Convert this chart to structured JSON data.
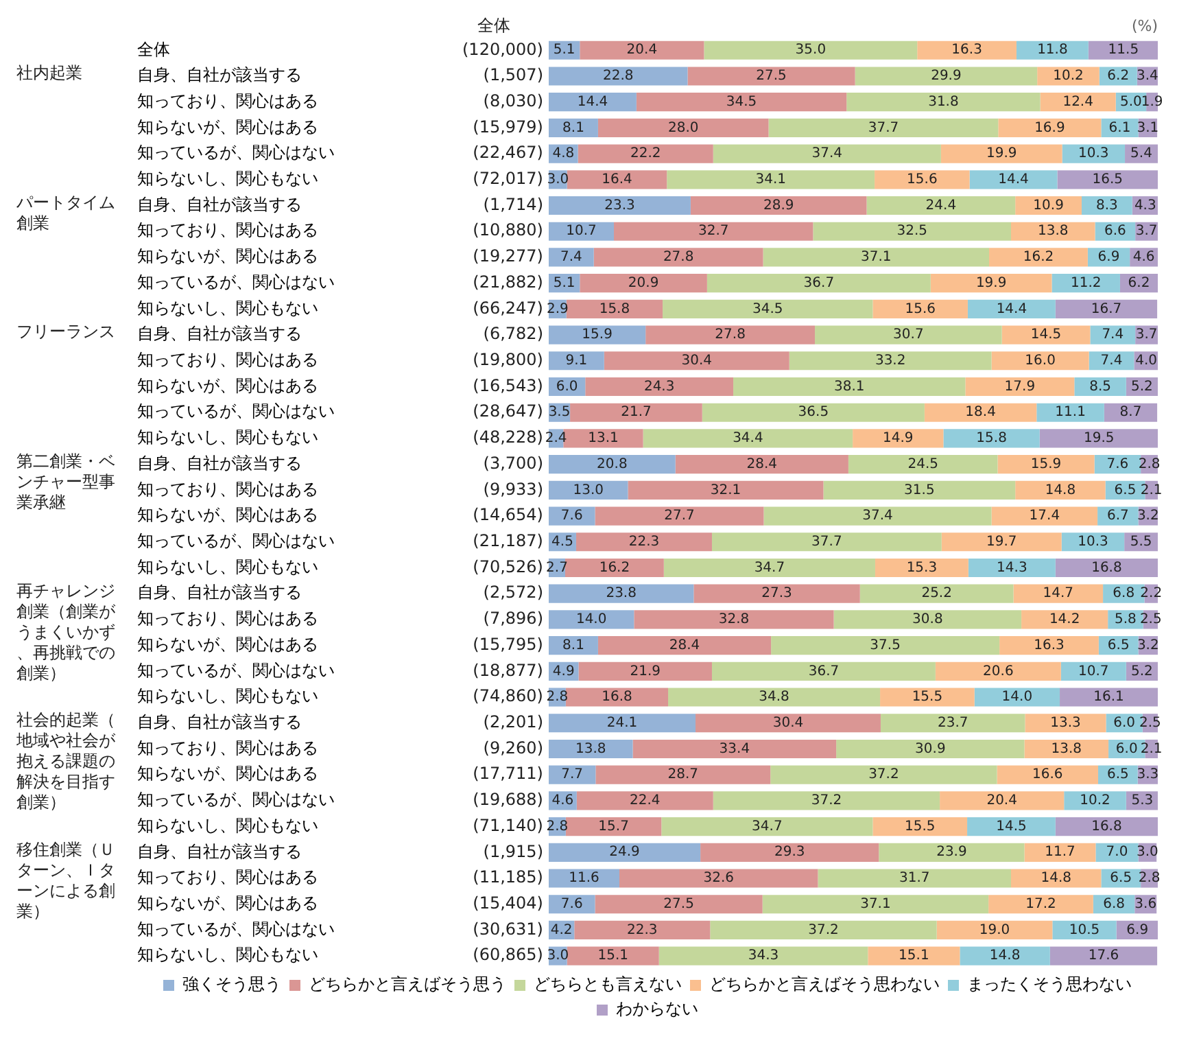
{
  "chart_data": {
    "type": "bar",
    "orientation": "horizontal",
    "stacked": true,
    "xlabel": "(%)",
    "xlim": [
      0,
      100
    ],
    "tick_labels": "y",
    "grid": false,
    "legend": "bottom",
    "categories": [
      "全体",
      "自身、自社が該当する",
      "知っており、関心はある",
      "知らないが、関心はある",
      "知っているが、関心はない",
      "知らないし、関心もない",
      "自身、自社が該当する",
      "知っており、関心はある",
      "知らないが、関心はある",
      "知っているが、関心はない",
      "知らないし、関心もない",
      "自身、自社が該当する",
      "知っており、関心はある",
      "知らないが、関心はある",
      "知っているが、関心はない",
      "知らないし、関心もない",
      "自身、自社が該当する",
      "知っており、関心はある",
      "知らないが、関心はある",
      "知っているが、関心はない",
      "知らないし、関心もない",
      "自身、自社が該当する",
      "知っており、関心はある",
      "知らないが、関心はある",
      "知っているが、関心はない",
      "知らないし、関心もない",
      "自身、自社が該当する",
      "知っており、関心はある",
      "知らないが、関心はある",
      "知っているが、関心はない",
      "知らないし、関心もない",
      "自身、自社が該当する",
      "知っており、関心はある",
      "知らないが、関心はある",
      "知っているが、関心はない",
      "知らないし、関心もない"
    ],
    "annotations": [
      "全体",
      "社内起業",
      "パートタイム創業",
      "フリーランス",
      "第二創業・ベンチャー型事業承継",
      "再チャレンジ創業（創業がうまくいかず、再挑戦での創業）",
      "社会的起業（地域や社会が抱える課題の解決を目指す創業）",
      "移住創業（Ｕターン、Ｉターンによる創業）",
      "(120,000)",
      "(1,507)",
      "(8,030)",
      "(15,979)",
      "(22,467)",
      "(72,017)",
      "(1,714)",
      "(10,880)",
      "(19,277)",
      "(21,882)",
      "(66,247)",
      "(6,782)",
      "(19,800)",
      "(16,543)",
      "(28,647)",
      "(48,228)",
      "(3,700)",
      "(9,933)",
      "(14,654)",
      "(21,187)",
      "(70,526)",
      "(2,572)",
      "(7,896)",
      "(15,795)",
      "(18,877)",
      "(74,860)",
      "(2,201)",
      "(9,260)",
      "(17,711)",
      "(19,688)",
      "(71,140)",
      "(1,915)",
      "(11,185)",
      "(15,404)",
      "(30,631)",
      "(60,865)"
    ],
    "series": [
      {
        "name": "強くそう思う",
        "color": "#95b3d7",
        "values": [
          5.1,
          22.8,
          14.4,
          8.1,
          4.8,
          3.0,
          23.3,
          10.7,
          7.4,
          5.1,
          2.9,
          15.9,
          9.1,
          6.0,
          3.5,
          2.4,
          20.8,
          13.0,
          7.6,
          4.5,
          2.7,
          23.8,
          14.0,
          8.1,
          4.9,
          2.8,
          24.1,
          13.8,
          7.7,
          4.6,
          2.8,
          24.9,
          11.6,
          7.6,
          4.2,
          3.0
        ],
        "value_labels": [
          "5.1",
          "22.8",
          "14.4",
          "8.1",
          "4.8",
          "3.0",
          "23.3",
          "10.7",
          "7.4",
          "5.1",
          "2.9",
          "15.9",
          "9.1",
          "6.0",
          "3.5",
          "2.4",
          "20.8",
          "13.0",
          "7.6",
          "4.5",
          "2.7",
          "23.8",
          "14.0",
          "8.1",
          "4.9",
          "2.8",
          "24.1",
          "13.8",
          "7.7",
          "4.6",
          "2.8",
          "24.9",
          "11.6",
          "7.6",
          "4.2",
          "3.0"
        ]
      },
      {
        "name": "どちらかと言えばそう思う",
        "color": "#da9694",
        "values": [
          20.4,
          27.5,
          34.5,
          28.0,
          22.2,
          16.4,
          28.9,
          32.7,
          27.8,
          20.9,
          15.8,
          27.8,
          30.4,
          24.3,
          21.7,
          13.1,
          28.4,
          32.1,
          27.7,
          22.3,
          16.2,
          27.3,
          32.8,
          28.4,
          21.9,
          16.8,
          30.4,
          33.4,
          28.7,
          22.4,
          15.7,
          29.3,
          32.6,
          27.5,
          22.3,
          15.1
        ],
        "value_labels": [
          "20.4",
          "27.5",
          "34.5",
          "28.0",
          "22.2",
          "16.4",
          "28.9",
          "32.7",
          "27.8",
          "20.9",
          "15.8",
          "27.8",
          "30.4",
          "24.3",
          "21.7",
          "13.1",
          "28.4",
          "32.1",
          "27.7",
          "22.3",
          "16.2",
          "27.3",
          "32.8",
          "28.4",
          "21.9",
          "16.8",
          "30.4",
          "33.4",
          "28.7",
          "22.4",
          "15.7",
          "29.3",
          "32.6",
          "27.5",
          "22.3",
          "15.1"
        ]
      },
      {
        "name": "どちらとも言えない",
        "color": "#c4d79b",
        "values": [
          35.0,
          29.9,
          31.8,
          37.7,
          37.4,
          34.1,
          24.4,
          32.5,
          37.1,
          36.7,
          34.5,
          30.7,
          33.2,
          38.1,
          36.5,
          34.4,
          24.5,
          31.5,
          37.4,
          37.7,
          34.7,
          25.2,
          30.8,
          37.5,
          36.7,
          34.8,
          23.7,
          30.9,
          37.2,
          37.2,
          34.7,
          23.9,
          31.7,
          37.1,
          37.2,
          34.3
        ],
        "value_labels": [
          "35.0",
          "29.9",
          "31.8",
          "37.7",
          "37.4",
          "34.1",
          "24.4",
          "32.5",
          "37.1",
          "36.7",
          "34.5",
          "30.7",
          "33.2",
          "38.1",
          "36.5",
          "34.4",
          "24.5",
          "31.5",
          "37.4",
          "37.7",
          "34.7",
          "25.2",
          "30.8",
          "37.5",
          "36.7",
          "34.8",
          "23.7",
          "30.9",
          "37.2",
          "37.2",
          "34.7",
          "23.9",
          "31.7",
          "37.1",
          "37.2",
          "34.3"
        ]
      },
      {
        "name": "どちらかと言えばそう思わない",
        "color": "#fabf8f",
        "values": [
          16.3,
          10.2,
          12.4,
          16.9,
          19.9,
          15.6,
          10.9,
          13.8,
          16.2,
          19.9,
          15.6,
          14.5,
          16.0,
          17.9,
          18.4,
          14.9,
          15.9,
          14.8,
          17.4,
          19.7,
          15.3,
          14.7,
          14.2,
          16.3,
          20.6,
          15.5,
          13.3,
          13.8,
          16.6,
          20.4,
          15.5,
          11.7,
          14.8,
          17.2,
          19.0,
          15.1
        ],
        "value_labels": [
          "16.3",
          "10.2",
          "12.4",
          "16.9",
          "19.9",
          "15.6",
          "10.9",
          "13.8",
          "16.2",
          "19.9",
          "15.6",
          "14.5",
          "16.0",
          "17.9",
          "18.4",
          "14.9",
          "15.9",
          "14.8",
          "17.4",
          "19.7",
          "15.3",
          "14.7",
          "14.2",
          "16.3",
          "20.6",
          "15.5",
          "13.3",
          "13.8",
          "16.6",
          "20.4",
          "15.5",
          "11.7",
          "14.8",
          "17.2",
          "19.0",
          "15.1"
        ]
      },
      {
        "name": "まったくそう思わない",
        "color": "#92cddc",
        "values": [
          11.8,
          6.2,
          5.0,
          6.1,
          10.3,
          14.4,
          8.3,
          6.6,
          6.9,
          11.2,
          14.4,
          7.4,
          7.4,
          8.5,
          11.1,
          15.8,
          7.6,
          6.5,
          6.7,
          10.3,
          14.3,
          6.8,
          5.8,
          6.5,
          10.7,
          14.0,
          6.0,
          6.0,
          6.5,
          10.2,
          14.5,
          7.0,
          6.5,
          6.8,
          10.5,
          14.8
        ],
        "value_labels": [
          "11.8",
          "6.2",
          "5.0",
          "6.1",
          "10.3",
          "14.4",
          "8.3",
          "6.6",
          "6.9",
          "11.2",
          "14.4",
          "7.4",
          "7.4",
          "8.5",
          "11.1",
          "15.8",
          "7.6",
          "6.5",
          "6.7",
          "10.3",
          "14.3",
          "6.8",
          "5.8",
          "6.5",
          "10.7",
          "14.0",
          "6.0",
          "6.0",
          "6.5",
          "10.2",
          "14.5",
          "7.0",
          "6.5",
          "6.8",
          "10.5",
          "14.8"
        ]
      },
      {
        "name": "わからない",
        "color": "#b1a0c7",
        "values": [
          11.5,
          3.4,
          1.9,
          3.1,
          5.4,
          16.5,
          4.3,
          3.7,
          4.6,
          6.2,
          16.7,
          3.7,
          4.0,
          5.2,
          8.7,
          19.5,
          2.8,
          2.1,
          3.2,
          5.5,
          16.8,
          2.2,
          2.5,
          3.2,
          5.2,
          16.1,
          2.5,
          2.1,
          3.3,
          5.3,
          16.8,
          3.0,
          2.8,
          3.6,
          6.9,
          17.6
        ],
        "value_labels": [
          "11.5",
          "3.4",
          "1.9",
          "3.1",
          "5.4",
          "16.5",
          "4.3",
          "3.7",
          "4.6",
          "6.2",
          "16.7",
          "3.7",
          "4.0",
          "5.2",
          "8.7",
          "19.5",
          "2.8",
          "2.1",
          "3.2",
          "5.5",
          "16.8",
          "2.2",
          "2.5",
          "3.2",
          "5.2",
          "16.1",
          "2.5",
          "2.1",
          "3.3",
          "5.3",
          "16.8",
          "3.0",
          "2.8",
          "3.6",
          "6.9",
          "17.6"
        ]
      }
    ]
  }
}
